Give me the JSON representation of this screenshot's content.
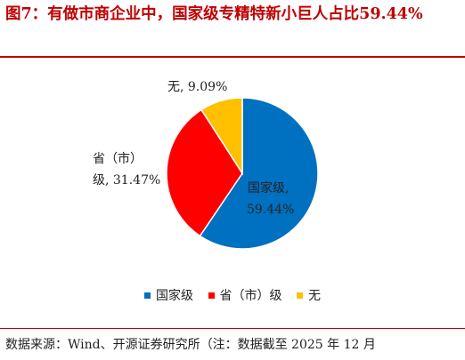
{
  "title": "图7：有做市商企业中，国家级专精特新小巨人占比59.44%",
  "source": "数据来源：Wind、开源证券研究所（注：数据截至 2025 年 12 月",
  "chart_data": {
    "type": "pie",
    "slices": [
      {
        "name": "国家级",
        "value": 59.44,
        "label_line1": "国家级,",
        "label_line2": "59.44%",
        "color": "#0070c0"
      },
      {
        "name": "省（市）级",
        "value": 31.47,
        "label_line1": "省（市）",
        "label_line2": "级, 31.47%",
        "color": "#ff0000"
      },
      {
        "name": "无",
        "value": 9.09,
        "label_line1": "无, 9.09%",
        "label_line2": "",
        "color": "#ffc000"
      }
    ],
    "legend_position": "bottom"
  }
}
